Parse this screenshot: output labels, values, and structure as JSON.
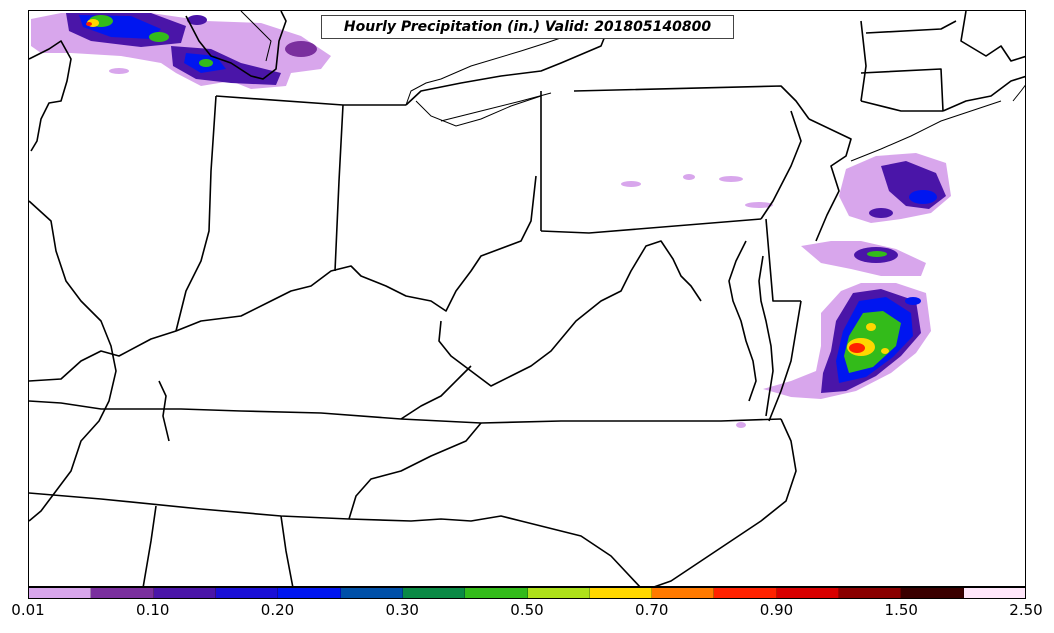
{
  "map": {
    "title": "Hourly Precipitation (in.) Valid: 201805140800",
    "colorbar": {
      "colors": [
        "#d8a6ec",
        "#7a2f9e",
        "#4a15a8",
        "#1a0fd6",
        "#0016f0",
        "#0050a8",
        "#0a8a45",
        "#33bb1a",
        "#aee11a",
        "#ffd700",
        "#ff7a00",
        "#ff2200",
        "#d80000",
        "#8a0000",
        "#3a0000",
        "#ffe6fa"
      ],
      "tick_labels": [
        "0.01",
        "0.10",
        "0.20",
        "0.30",
        "0.50",
        "0.70",
        "0.90",
        "1.50",
        "2.50"
      ]
    }
  }
}
